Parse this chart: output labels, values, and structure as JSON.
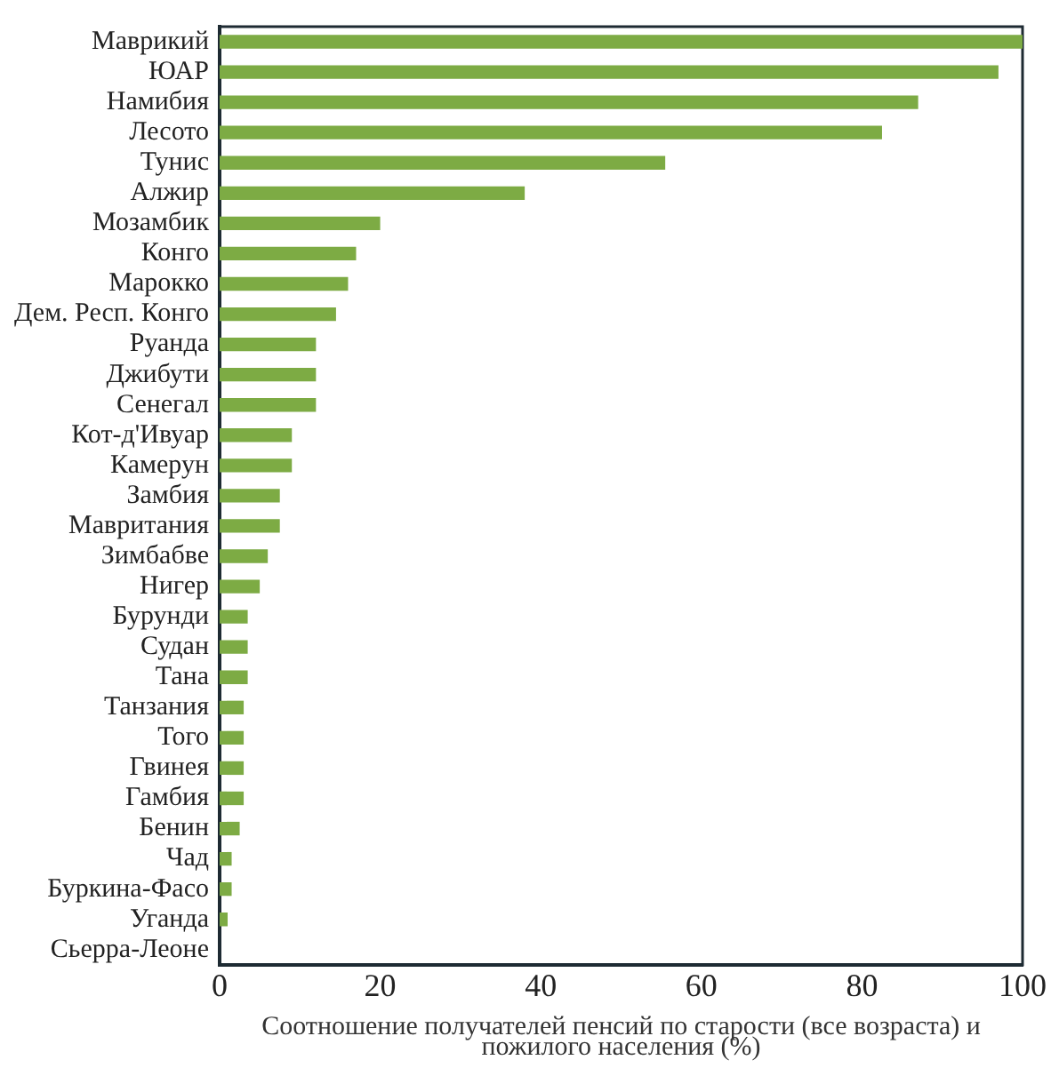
{
  "chart_data": {
    "type": "bar",
    "orientation": "horizontal",
    "xlabel": "Соотношение получателей пенсий по старости (все возраста) и пожилого населения (%)",
    "categories": [
      "Маврикий",
      "ЮАР",
      "Намибия",
      "Лесото",
      "Тунис",
      "Алжир",
      "Мозамбик",
      "Конго",
      "Марокко",
      "Дем. Респ. Конго",
      "Руанда",
      "Джибути",
      "Сенегал",
      "Кот-д'Ивуар",
      "Камерун",
      "Замбия",
      "Мавритания",
      "Зимбабве",
      "Нигер",
      "Бурунди",
      "Судан",
      "Тана",
      "Танзания",
      "Того",
      "Гвинея",
      "Гамбия",
      "Бенин",
      "Чад",
      "Буркина-Фасо",
      "Уганда",
      "Сьерра-Леоне"
    ],
    "values": [
      100,
      97,
      87,
      82.5,
      55.5,
      38,
      20,
      17,
      16,
      14.5,
      12,
      12,
      12,
      9,
      9,
      7.5,
      7.5,
      6,
      5,
      3.5,
      3.5,
      3.5,
      3,
      3,
      3,
      3,
      2.5,
      1.5,
      1.5,
      1,
      0
    ],
    "color": "#7dab44",
    "xlim": [
      0,
      100
    ],
    "xticks": [
      0,
      20,
      40,
      60,
      80,
      100
    ],
    "grid": false,
    "legend": false
  }
}
